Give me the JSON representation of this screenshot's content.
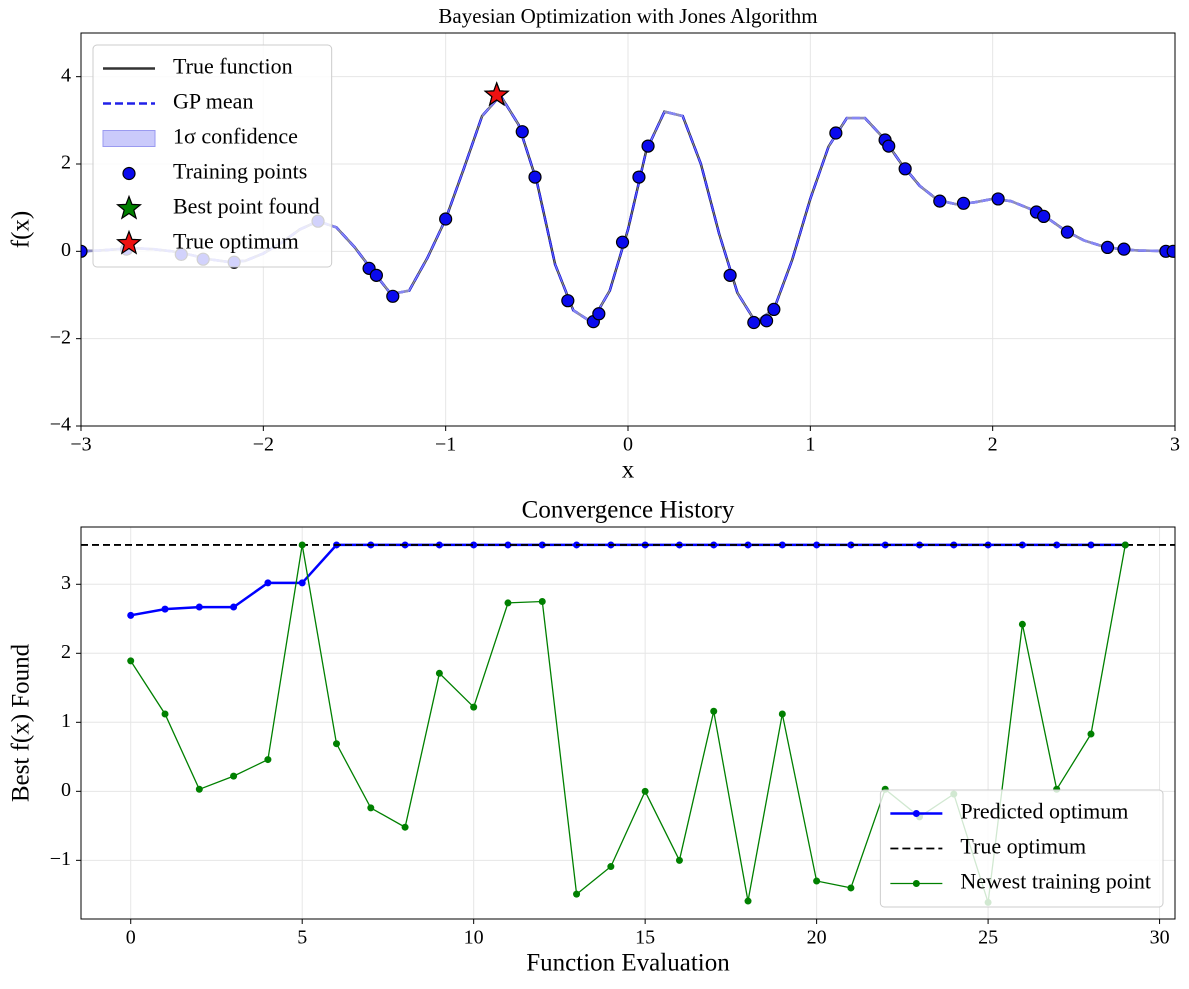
{
  "chart_data": [
    {
      "type": "line",
      "title": "Bayesian Optimization with Jones Algorithm",
      "xlabel": "x",
      "ylabel": "f(x)",
      "xlim": [
        -3,
        3
      ],
      "ylim": [
        -4,
        5
      ],
      "xticks": [
        {
          "value": -3,
          "label": "−3"
        },
        {
          "value": -2,
          "label": "−2"
        },
        {
          "value": -1,
          "label": "−1"
        },
        0,
        1,
        2,
        3
      ],
      "yticks": [
        {
          "value": -4,
          "label": "−4"
        },
        {
          "value": -2,
          "label": "−2"
        },
        0,
        2,
        4
      ],
      "grid": true,
      "legend": "upper left",
      "x": [
        -3.0,
        -2.9,
        -2.8,
        -2.7,
        -2.6,
        -2.5,
        -2.4,
        -2.3,
        -2.2,
        -2.1,
        -2.0,
        -1.9,
        -1.8,
        -1.7,
        -1.6,
        -1.5,
        -1.4,
        -1.3,
        -1.2,
        -1.1,
        -1.0,
        -0.9,
        -0.8,
        -0.7,
        -0.6,
        -0.5,
        -0.4,
        -0.3,
        -0.2,
        -0.1,
        0.0,
        0.1,
        0.2,
        0.3,
        0.4,
        0.5,
        0.6,
        0.7,
        0.8,
        0.9,
        1.0,
        1.1,
        1.2,
        1.3,
        1.4,
        1.5,
        1.6,
        1.7,
        1.8,
        1.9,
        2.0,
        2.1,
        2.2,
        2.3,
        2.4,
        2.5,
        2.6,
        2.7,
        2.8,
        2.9,
        3.0
      ],
      "series": [
        {
          "name": "True function",
          "kind": "line",
          "color": "#333333",
          "linewidth": 2.5,
          "values": [
            0.0,
            0.02,
            0.05,
            0.07,
            0.05,
            0.0,
            -0.08,
            -0.18,
            -0.24,
            -0.22,
            -0.05,
            0.2,
            0.5,
            0.69,
            0.55,
            0.1,
            -0.45,
            -0.98,
            -0.9,
            -0.15,
            0.74,
            1.9,
            3.1,
            3.57,
            2.9,
            1.6,
            -0.3,
            -1.35,
            -1.62,
            -0.9,
            0.5,
            2.3,
            3.2,
            3.1,
            2.0,
            0.4,
            -0.95,
            -1.62,
            -1.33,
            -0.2,
            1.2,
            2.4,
            3.05,
            3.05,
            2.6,
            2.0,
            1.5,
            1.17,
            1.08,
            1.12,
            1.2,
            1.15,
            0.98,
            0.76,
            0.47,
            0.25,
            0.12,
            0.05,
            0.02,
            0.01,
            0.0
          ]
        },
        {
          "name": "GP mean",
          "kind": "line",
          "color": "#2020e8",
          "linestyle": "dashed",
          "linewidth": 2.5,
          "values": [
            0.0,
            0.02,
            0.05,
            0.07,
            0.05,
            0.0,
            -0.08,
            -0.18,
            -0.24,
            -0.22,
            -0.05,
            0.2,
            0.5,
            0.69,
            0.55,
            0.1,
            -0.45,
            -0.98,
            -0.9,
            -0.15,
            0.74,
            1.9,
            3.1,
            3.57,
            2.9,
            1.6,
            -0.3,
            -1.35,
            -1.62,
            -0.9,
            0.5,
            2.3,
            3.2,
            3.1,
            2.0,
            0.4,
            -0.95,
            -1.62,
            -1.33,
            -0.2,
            1.2,
            2.4,
            3.05,
            3.05,
            2.6,
            2.0,
            1.5,
            1.17,
            1.08,
            1.12,
            1.2,
            1.15,
            0.98,
            0.76,
            0.47,
            0.25,
            0.12,
            0.05,
            0.02,
            0.01,
            0.0
          ]
        },
        {
          "name": "1σ confidence",
          "kind": "band",
          "color": "#b4b4fa",
          "values": [
            0.03,
            0.03,
            0.03,
            0.03,
            0.03,
            0.03,
            0.03,
            0.03,
            0.03,
            0.03,
            0.03,
            0.03,
            0.03,
            0.03,
            0.03,
            0.03,
            0.03,
            0.03,
            0.03,
            0.03,
            0.03,
            0.03,
            0.03,
            0.03,
            0.03,
            0.03,
            0.03,
            0.03,
            0.03,
            0.03,
            0.03,
            0.03,
            0.03,
            0.03,
            0.03,
            0.03,
            0.03,
            0.03,
            0.03,
            0.03,
            0.03,
            0.03,
            0.03,
            0.03,
            0.03,
            0.03,
            0.03,
            0.03,
            0.03,
            0.03,
            0.03,
            0.03,
            0.03,
            0.03,
            0.03,
            0.03,
            0.03,
            0.03,
            0.03,
            0.03,
            0.03
          ]
        },
        {
          "name": "Training points",
          "kind": "scatter",
          "marker": "circle",
          "color": "#0a0aee",
          "x": [
            -3.0,
            -2.75,
            -2.45,
            -2.33,
            -2.16,
            -1.7,
            -1.42,
            -1.38,
            -1.29,
            -1.0,
            -0.58,
            -0.51,
            -0.33,
            -0.19,
            -0.16,
            -0.03,
            0.06,
            0.11,
            0.56,
            0.69,
            0.76,
            0.8,
            1.14,
            1.41,
            1.43,
            1.52,
            1.71,
            1.84,
            2.03,
            2.24,
            2.28,
            2.41,
            2.63,
            2.72,
            2.95,
            2.99
          ],
          "values": [
            0.0,
            0.05,
            -0.07,
            -0.18,
            -0.25,
            0.69,
            -0.39,
            -0.55,
            -1.03,
            0.74,
            2.74,
            1.7,
            -1.13,
            -1.61,
            -1.43,
            0.21,
            1.7,
            2.41,
            -0.55,
            -1.63,
            -1.59,
            -1.33,
            2.71,
            2.55,
            2.41,
            1.89,
            1.15,
            1.1,
            1.2,
            0.9,
            0.8,
            0.44,
            0.09,
            0.05,
            0.0,
            0.0
          ]
        },
        {
          "name": "Best point found",
          "kind": "scatter",
          "marker": "star",
          "color": "#008000",
          "x": [
            -0.72
          ],
          "values": [
            3.58
          ]
        },
        {
          "name": "True optimum",
          "kind": "scatter",
          "marker": "star",
          "color": "#ee1111",
          "x": [
            -0.72
          ],
          "values": [
            3.58
          ]
        }
      ]
    },
    {
      "type": "line",
      "title": "Convergence History",
      "xlabel": "Function Evaluation",
      "ylabel": "Best f(x) Found",
      "xlim": [
        -1.45,
        30.45
      ],
      "ylim": [
        -1.85,
        3.83
      ],
      "xticks": [
        0,
        5,
        10,
        15,
        20,
        25,
        30
      ],
      "yticks": [
        {
          "value": -1,
          "label": "−1"
        },
        0,
        1,
        2,
        3
      ],
      "grid": true,
      "legend": "lower right",
      "x": [
        0,
        1,
        2,
        3,
        4,
        5,
        6,
        7,
        8,
        9,
        10,
        11,
        12,
        13,
        14,
        15,
        16,
        17,
        18,
        19,
        20,
        21,
        22,
        23,
        24,
        25,
        26,
        27,
        28,
        29
      ],
      "series": [
        {
          "name": "Predicted optimum",
          "kind": "line",
          "marker": "circle",
          "color": "#0000ff",
          "linewidth": 2.5,
          "values": [
            2.55,
            2.64,
            2.67,
            2.67,
            3.02,
            3.02,
            3.57,
            3.57,
            3.57,
            3.57,
            3.57,
            3.57,
            3.57,
            3.57,
            3.57,
            3.57,
            3.57,
            3.57,
            3.57,
            3.57,
            3.57,
            3.57,
            3.57,
            3.57,
            3.57,
            3.57,
            3.57,
            3.57,
            3.57,
            3.57
          ]
        },
        {
          "name": "True optimum",
          "kind": "hline",
          "color": "#000000",
          "linestyle": "dashed",
          "linewidth": 1.8,
          "value": 3.57
        },
        {
          "name": "Newest training point",
          "kind": "line",
          "marker": "circle",
          "color": "#008000",
          "linewidth": 1.3,
          "values": [
            1.89,
            1.12,
            0.03,
            0.22,
            0.46,
            3.57,
            0.69,
            -0.24,
            -0.52,
            1.71,
            1.22,
            2.73,
            2.75,
            -1.49,
            -1.09,
            0.0,
            -1.0,
            1.16,
            -1.59,
            1.12,
            -1.3,
            -1.4,
            0.03,
            -0.37,
            -0.04,
            -1.61,
            2.42,
            0.03,
            0.83,
            3.57
          ]
        }
      ]
    }
  ]
}
